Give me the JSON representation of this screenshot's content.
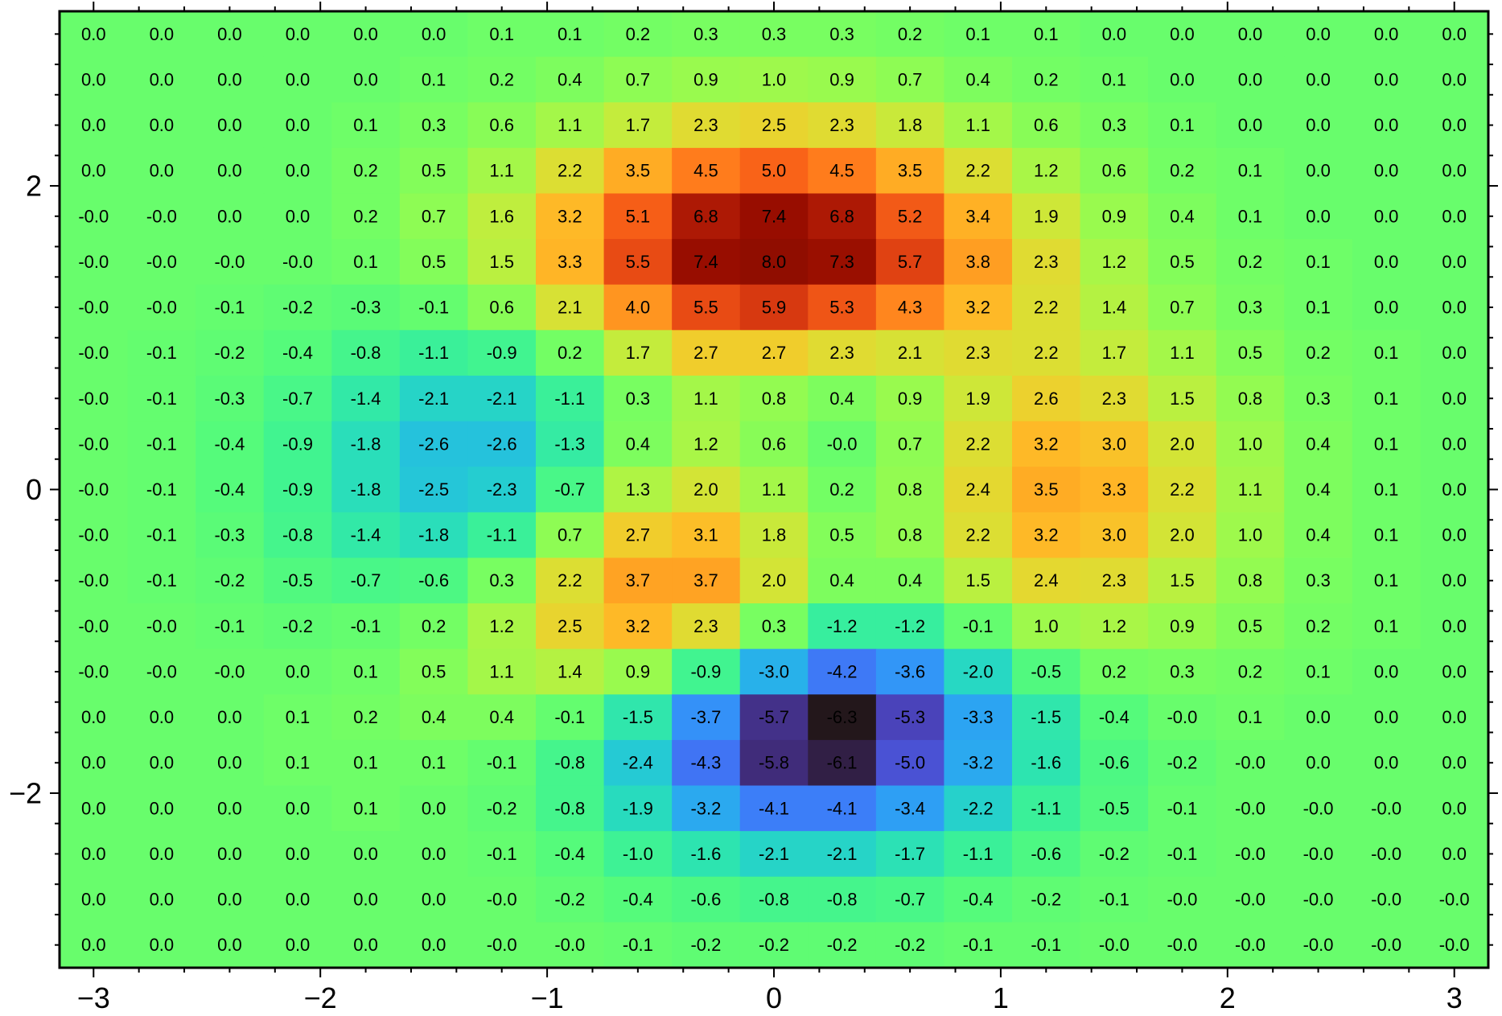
{
  "chart_data": {
    "type": "heatmap",
    "x": [
      -3.0,
      -2.7,
      -2.4,
      -2.1,
      -1.8,
      -1.5,
      -1.2,
      -0.9,
      -0.6,
      -0.3,
      0.0,
      0.3,
      0.6,
      0.9,
      1.2,
      1.5,
      1.8,
      2.1,
      2.4,
      2.7,
      3.0
    ],
    "y": [
      3.0,
      2.7,
      2.4,
      2.1,
      1.8,
      1.5,
      1.2,
      0.9,
      0.6,
      0.3,
      0.0,
      -0.3,
      -0.6,
      -0.9,
      -1.2,
      -1.5,
      -1.8,
      -2.1,
      -2.4,
      -2.7,
      -3.0
    ],
    "z_labels": [
      [
        "0.0",
        "0.0",
        "0.0",
        "0.0",
        "0.0",
        "0.0",
        "0.1",
        "0.1",
        "0.2",
        "0.3",
        "0.3",
        "0.3",
        "0.2",
        "0.1",
        "0.1",
        "0.0",
        "0.0",
        "0.0",
        "0.0",
        "0.0",
        "0.0"
      ],
      [
        "0.0",
        "0.0",
        "0.0",
        "0.0",
        "0.0",
        "0.1",
        "0.2",
        "0.4",
        "0.7",
        "0.9",
        "1.0",
        "0.9",
        "0.7",
        "0.4",
        "0.2",
        "0.1",
        "0.0",
        "0.0",
        "0.0",
        "0.0",
        "0.0"
      ],
      [
        "0.0",
        "0.0",
        "0.0",
        "0.0",
        "0.1",
        "0.3",
        "0.6",
        "1.1",
        "1.7",
        "2.3",
        "2.5",
        "2.3",
        "1.8",
        "1.1",
        "0.6",
        "0.3",
        "0.1",
        "0.0",
        "0.0",
        "0.0",
        "0.0"
      ],
      [
        "0.0",
        "0.0",
        "0.0",
        "0.0",
        "0.2",
        "0.5",
        "1.1",
        "2.2",
        "3.5",
        "4.5",
        "5.0",
        "4.5",
        "3.5",
        "2.2",
        "1.2",
        "0.6",
        "0.2",
        "0.1",
        "0.0",
        "0.0",
        "0.0"
      ],
      [
        "-0.0",
        "-0.0",
        "0.0",
        "0.0",
        "0.2",
        "0.7",
        "1.6",
        "3.2",
        "5.1",
        "6.8",
        "7.4",
        "6.8",
        "5.2",
        "3.4",
        "1.9",
        "0.9",
        "0.4",
        "0.1",
        "0.0",
        "0.0",
        "0.0"
      ],
      [
        "-0.0",
        "-0.0",
        "-0.0",
        "-0.0",
        "0.1",
        "0.5",
        "1.5",
        "3.3",
        "5.5",
        "7.4",
        "8.0",
        "7.3",
        "5.7",
        "3.8",
        "2.3",
        "1.2",
        "0.5",
        "0.2",
        "0.1",
        "0.0",
        "0.0"
      ],
      [
        "-0.0",
        "-0.0",
        "-0.1",
        "-0.2",
        "-0.3",
        "-0.1",
        "0.6",
        "2.1",
        "4.0",
        "5.5",
        "5.9",
        "5.3",
        "4.3",
        "3.2",
        "2.2",
        "1.4",
        "0.7",
        "0.3",
        "0.1",
        "0.0",
        "0.0"
      ],
      [
        "-0.0",
        "-0.1",
        "-0.2",
        "-0.4",
        "-0.8",
        "-1.1",
        "-0.9",
        "0.2",
        "1.7",
        "2.7",
        "2.7",
        "2.3",
        "2.1",
        "2.3",
        "2.2",
        "1.7",
        "1.1",
        "0.5",
        "0.2",
        "0.1",
        "0.0"
      ],
      [
        "-0.0",
        "-0.1",
        "-0.3",
        "-0.7",
        "-1.4",
        "-2.1",
        "-2.1",
        "-1.1",
        "0.3",
        "1.1",
        "0.8",
        "0.4",
        "0.9",
        "1.9",
        "2.6",
        "2.3",
        "1.5",
        "0.8",
        "0.3",
        "0.1",
        "0.0"
      ],
      [
        "-0.0",
        "-0.1",
        "-0.4",
        "-0.9",
        "-1.8",
        "-2.6",
        "-2.6",
        "-1.3",
        "0.4",
        "1.2",
        "0.6",
        "-0.0",
        "0.7",
        "2.2",
        "3.2",
        "3.0",
        "2.0",
        "1.0",
        "0.4",
        "0.1",
        "0.0"
      ],
      [
        "-0.0",
        "-0.1",
        "-0.4",
        "-0.9",
        "-1.8",
        "-2.5",
        "-2.3",
        "-0.7",
        "1.3",
        "2.0",
        "1.1",
        "0.2",
        "0.8",
        "2.4",
        "3.5",
        "3.3",
        "2.2",
        "1.1",
        "0.4",
        "0.1",
        "0.0"
      ],
      [
        "-0.0",
        "-0.1",
        "-0.3",
        "-0.8",
        "-1.4",
        "-1.8",
        "-1.1",
        "0.7",
        "2.7",
        "3.1",
        "1.8",
        "0.5",
        "0.8",
        "2.2",
        "3.2",
        "3.0",
        "2.0",
        "1.0",
        "0.4",
        "0.1",
        "0.0"
      ],
      [
        "-0.0",
        "-0.1",
        "-0.2",
        "-0.5",
        "-0.7",
        "-0.6",
        "0.3",
        "2.2",
        "3.7",
        "3.7",
        "2.0",
        "0.4",
        "0.4",
        "1.5",
        "2.4",
        "2.3",
        "1.5",
        "0.8",
        "0.3",
        "0.1",
        "0.0"
      ],
      [
        "-0.0",
        "-0.0",
        "-0.1",
        "-0.2",
        "-0.1",
        "0.2",
        "1.2",
        "2.5",
        "3.2",
        "2.3",
        "0.3",
        "-1.2",
        "-1.2",
        "-0.1",
        "1.0",
        "1.2",
        "0.9",
        "0.5",
        "0.2",
        "0.1",
        "0.0"
      ],
      [
        "-0.0",
        "-0.0",
        "-0.0",
        "0.0",
        "0.1",
        "0.5",
        "1.1",
        "1.4",
        "0.9",
        "-0.9",
        "-3.0",
        "-4.2",
        "-3.6",
        "-2.0",
        "-0.5",
        "0.2",
        "0.3",
        "0.2",
        "0.1",
        "0.0",
        "0.0"
      ],
      [
        "0.0",
        "0.0",
        "0.0",
        "0.1",
        "0.2",
        "0.4",
        "0.4",
        "-0.1",
        "-1.5",
        "-3.7",
        "-5.7",
        "-6.3",
        "-5.3",
        "-3.3",
        "-1.5",
        "-0.4",
        "-0.0",
        "0.1",
        "0.0",
        "0.0",
        "0.0"
      ],
      [
        "0.0",
        "0.0",
        "0.0",
        "0.1",
        "0.1",
        "0.1",
        "-0.1",
        "-0.8",
        "-2.4",
        "-4.3",
        "-5.8",
        "-6.1",
        "-5.0",
        "-3.2",
        "-1.6",
        "-0.6",
        "-0.2",
        "-0.0",
        "0.0",
        "0.0",
        "0.0"
      ],
      [
        "0.0",
        "0.0",
        "0.0",
        "0.0",
        "0.1",
        "0.0",
        "-0.2",
        "-0.8",
        "-1.9",
        "-3.2",
        "-4.1",
        "-4.1",
        "-3.4",
        "-2.2",
        "-1.1",
        "-0.5",
        "-0.1",
        "-0.0",
        "-0.0",
        "-0.0",
        "0.0"
      ],
      [
        "0.0",
        "0.0",
        "0.0",
        "0.0",
        "0.0",
        "0.0",
        "-0.1",
        "-0.4",
        "-1.0",
        "-1.6",
        "-2.1",
        "-2.1",
        "-1.7",
        "-1.1",
        "-0.6",
        "-0.2",
        "-0.1",
        "-0.0",
        "-0.0",
        "-0.0",
        "0.0"
      ],
      [
        "0.0",
        "0.0",
        "0.0",
        "0.0",
        "0.0",
        "0.0",
        "-0.0",
        "-0.2",
        "-0.4",
        "-0.6",
        "-0.8",
        "-0.8",
        "-0.7",
        "-0.4",
        "-0.2",
        "-0.1",
        "-0.0",
        "-0.0",
        "-0.0",
        "-0.0",
        "-0.0"
      ],
      [
        "0.0",
        "0.0",
        "0.0",
        "0.0",
        "0.0",
        "0.0",
        "-0.0",
        "-0.0",
        "-0.1",
        "-0.2",
        "-0.2",
        "-0.2",
        "-0.2",
        "-0.1",
        "-0.1",
        "-0.0",
        "-0.0",
        "-0.0",
        "-0.0",
        "-0.0",
        "-0.0"
      ]
    ],
    "xlim": [
      -3.15,
      3.15
    ],
    "ylim": [
      -3.15,
      3.15
    ],
    "x_ticks": [
      -3,
      -2,
      -1,
      0,
      1,
      2,
      3
    ],
    "x_tick_labels": [
      "−3",
      "−2",
      "−1",
      "0",
      "1",
      "2",
      "3"
    ],
    "y_ticks": [
      -2,
      0,
      2
    ],
    "y_tick_labels": [
      "−2",
      "0",
      "2"
    ],
    "minor_tick_step": 0.2,
    "colormap": "turbo",
    "color_range": [
      -6.3,
      8.0
    ],
    "grid": false,
    "title": "",
    "xlabel": "",
    "ylabel": ""
  }
}
